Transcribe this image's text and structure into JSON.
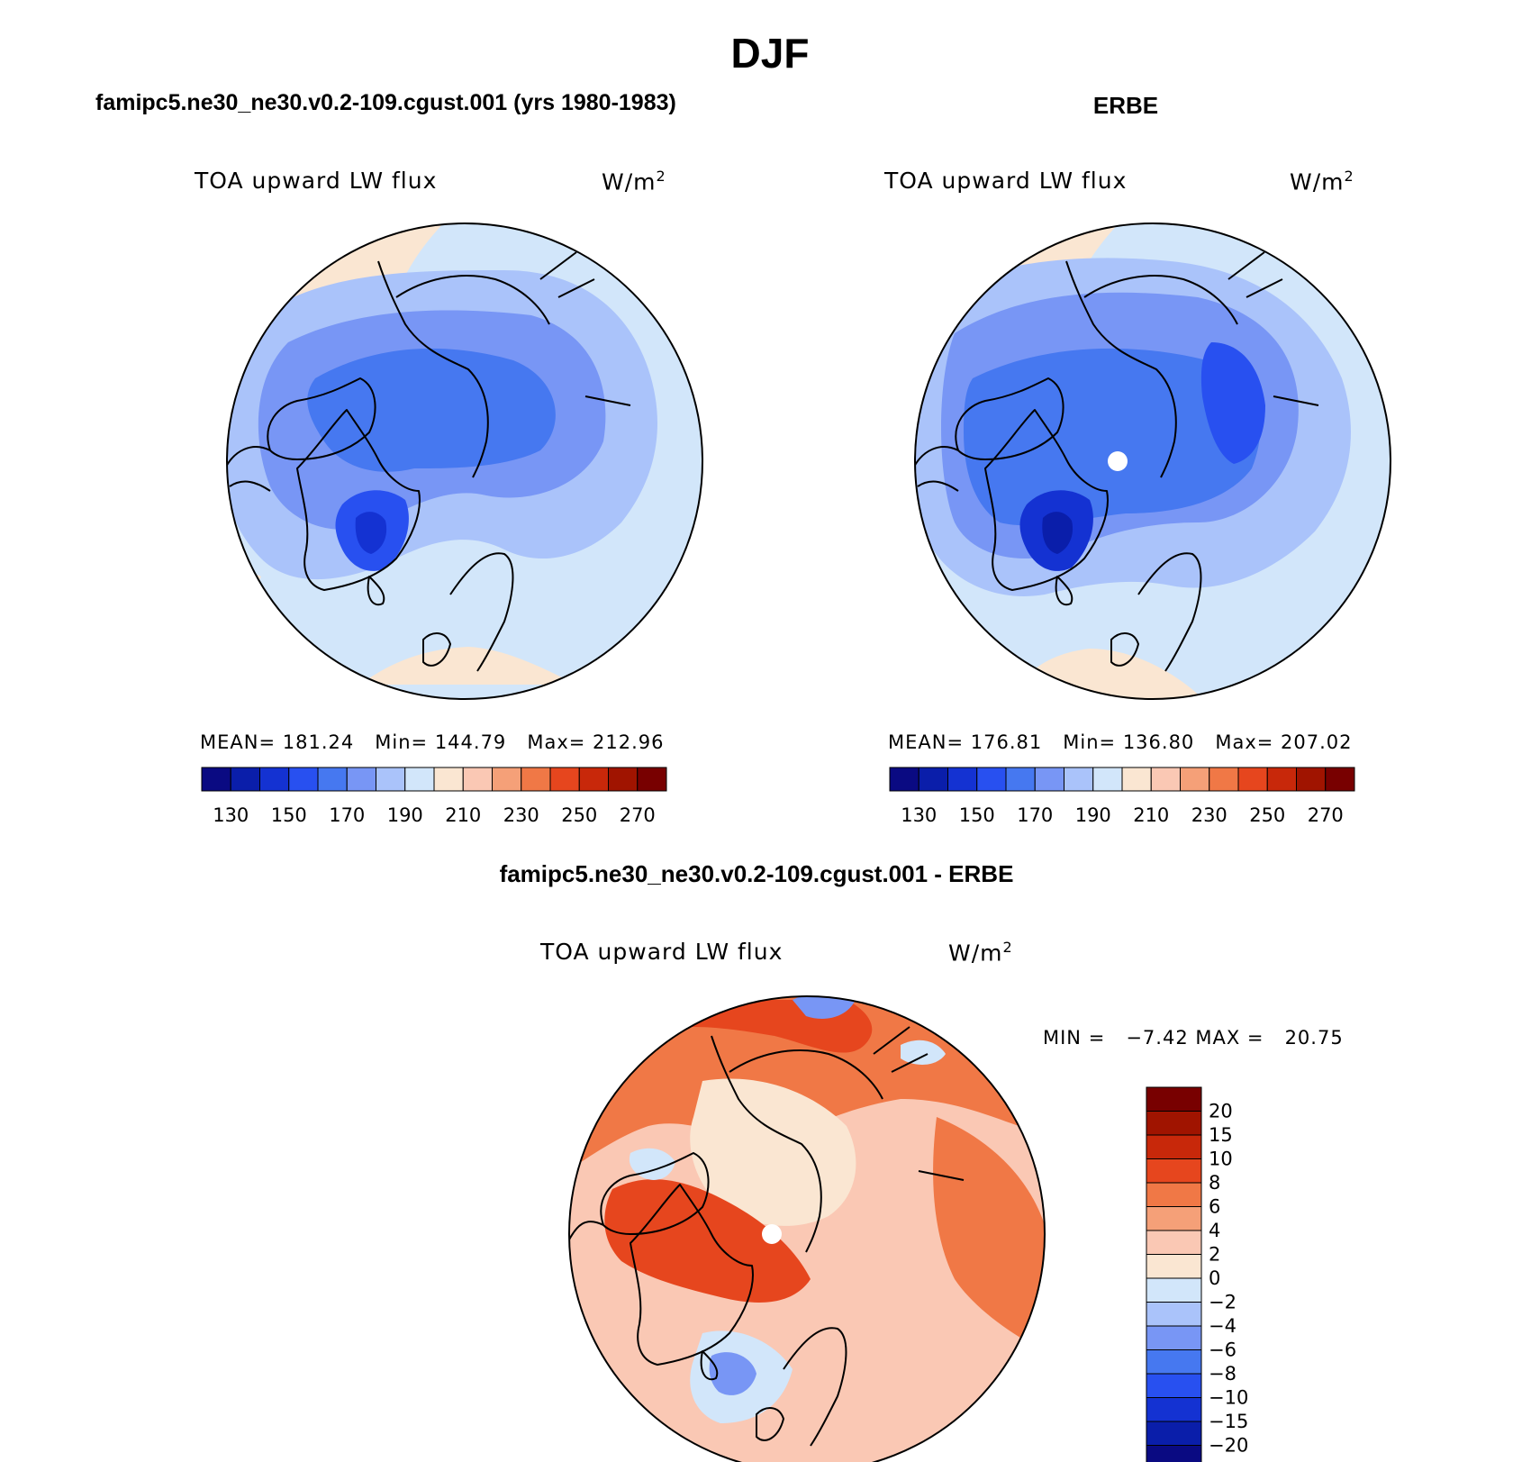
{
  "title": "DJF",
  "panels": [
    {
      "id": "model",
      "header": "famipc5.ne30_ne30.v0.2-109.cgust.001 (yrs 1980-1983)",
      "variable": "TOA upward LW flux",
      "units": "W/m",
      "units_sup": "2",
      "stats": {
        "mean_label": "MEAN=",
        "mean": "181.24",
        "min_label": "Min=",
        "min": "144.79",
        "max_label": "Max=",
        "max": "212.96"
      }
    },
    {
      "id": "obs",
      "header": "ERBE",
      "variable": "TOA upward LW flux",
      "units": "W/m",
      "units_sup": "2",
      "stats": {
        "mean_label": "MEAN=",
        "mean": "176.81",
        "min_label": "Min=",
        "min": "136.80",
        "max_label": "Max=",
        "max": "207.02"
      }
    },
    {
      "id": "diff",
      "header": "famipc5.ne30_ne30.v0.2-109.cgust.001 - ERBE",
      "variable": "TOA upward LW flux",
      "units": "W/m",
      "units_sup": "2",
      "stats": {
        "min_label": "MIN =",
        "min": "−7.42",
        "max_label": "MAX =",
        "max": "20.75"
      }
    }
  ],
  "chart_data": [
    {
      "type": "heatmap",
      "projection": "north polar stereographic",
      "title": "famipc5.ne30_ne30.v0.2-109.cgust.001 (yrs 1980-1983)",
      "variable": "TOA upward LW flux",
      "units": "W/m2",
      "mean": 181.24,
      "min": 144.79,
      "max": 212.96,
      "colorbar": {
        "orientation": "horizontal",
        "levels": [
          130,
          140,
          150,
          160,
          170,
          180,
          190,
          200,
          210,
          220,
          230,
          240,
          250,
          260,
          270
        ],
        "tick_labels": [
          "130",
          "150",
          "170",
          "190",
          "210",
          "230",
          "250",
          "270"
        ],
        "colors": [
          "#0a0a82",
          "#0a1eaa",
          "#1432d2",
          "#2850f0",
          "#4678f0",
          "#7896f5",
          "#aac3fa",
          "#d2e6fa",
          "#fae6d2",
          "#fac8b4",
          "#f5a078",
          "#f07846",
          "#e6461e",
          "#c8280a",
          "#a01400",
          "#780000"
        ]
      }
    },
    {
      "type": "heatmap",
      "projection": "north polar stereographic",
      "title": "ERBE",
      "variable": "TOA upward LW flux",
      "units": "W/m2",
      "mean": 176.81,
      "min": 136.8,
      "max": 207.02,
      "colorbar": {
        "orientation": "horizontal",
        "levels": [
          130,
          140,
          150,
          160,
          170,
          180,
          190,
          200,
          210,
          220,
          230,
          240,
          250,
          260,
          270
        ],
        "tick_labels": [
          "130",
          "150",
          "170",
          "190",
          "210",
          "230",
          "250",
          "270"
        ],
        "colors": [
          "#0a0a82",
          "#0a1eaa",
          "#1432d2",
          "#2850f0",
          "#4678f0",
          "#7896f5",
          "#aac3fa",
          "#d2e6fa",
          "#fae6d2",
          "#fac8b4",
          "#f5a078",
          "#f07846",
          "#e6461e",
          "#c8280a",
          "#a01400",
          "#780000"
        ]
      }
    },
    {
      "type": "heatmap",
      "projection": "north polar stereographic",
      "title": "famipc5.ne30_ne30.v0.2-109.cgust.001 - ERBE",
      "variable": "TOA upward LW flux",
      "units": "W/m2",
      "min": -7.42,
      "max": 20.75,
      "colorbar": {
        "orientation": "vertical",
        "levels": [
          20,
          15,
          10,
          8,
          6,
          4,
          2,
          0,
          -2,
          -4,
          -6,
          -8,
          -10,
          -15,
          -20
        ],
        "tick_labels": [
          "20",
          "15",
          "10",
          "8",
          "6",
          "4",
          "2",
          "0",
          "−2",
          "−4",
          "−6",
          "−8",
          "−10",
          "−15",
          "−20"
        ],
        "colors": [
          "#780000",
          "#a01400",
          "#c8280a",
          "#e6461e",
          "#f07846",
          "#f5a078",
          "#fac8b4",
          "#fae6d2",
          "#d2e6fa",
          "#aac3fa",
          "#7896f5",
          "#4678f0",
          "#2850f0",
          "#1432d2",
          "#0a1eaa",
          "#0a0a82"
        ]
      }
    }
  ]
}
